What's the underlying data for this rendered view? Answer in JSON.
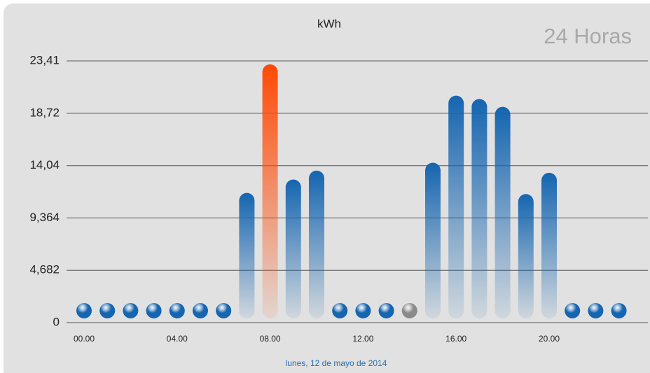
{
  "chart_data": {
    "type": "bar",
    "title": "kWh",
    "period_label": "24 Horas",
    "x_label": "lunes, 12 de mayo de 2014",
    "categories": [
      "00.00",
      null,
      null,
      null,
      "04.00",
      null,
      null,
      null,
      "08.00",
      null,
      null,
      null,
      "12.00",
      null,
      null,
      null,
      "16.00",
      null,
      null,
      null,
      "20.00",
      null,
      null,
      null
    ],
    "values": [
      1.2,
      1.2,
      1.2,
      1.2,
      1.2,
      1.2,
      1.2,
      11.6,
      23.1,
      12.8,
      13.6,
      1.2,
      1.2,
      1.2,
      1.2,
      14.3,
      20.3,
      20.0,
      19.3,
      11.5,
      13.4,
      1.2,
      1.2,
      1.2
    ],
    "colors": [
      "#1565b0",
      "#1565b0",
      "#1565b0",
      "#1565b0",
      "#1565b0",
      "#1565b0",
      "#1565b0",
      "#1565b0",
      "#ff4a05",
      "#1565b0",
      "#1565b0",
      "#1565b0",
      "#1565b0",
      "#1565b0",
      "#8a8a8a",
      "#1565b0",
      "#1565b0",
      "#1565b0",
      "#1565b0",
      "#1565b0",
      "#1565b0",
      "#1565b0",
      "#1565b0",
      "#1565b0"
    ],
    "ylim": [
      0,
      23.41
    ],
    "yticks": [
      0,
      {
        "value": 4.682,
        "label": "4,682"
      },
      {
        "value": 9.364,
        "label": "9,364"
      },
      {
        "value": 14.04,
        "label": "14,04"
      },
      {
        "value": 18.72,
        "label": "18,72"
      },
      {
        "value": 23.41,
        "label": "23,41"
      }
    ],
    "grid": true
  }
}
